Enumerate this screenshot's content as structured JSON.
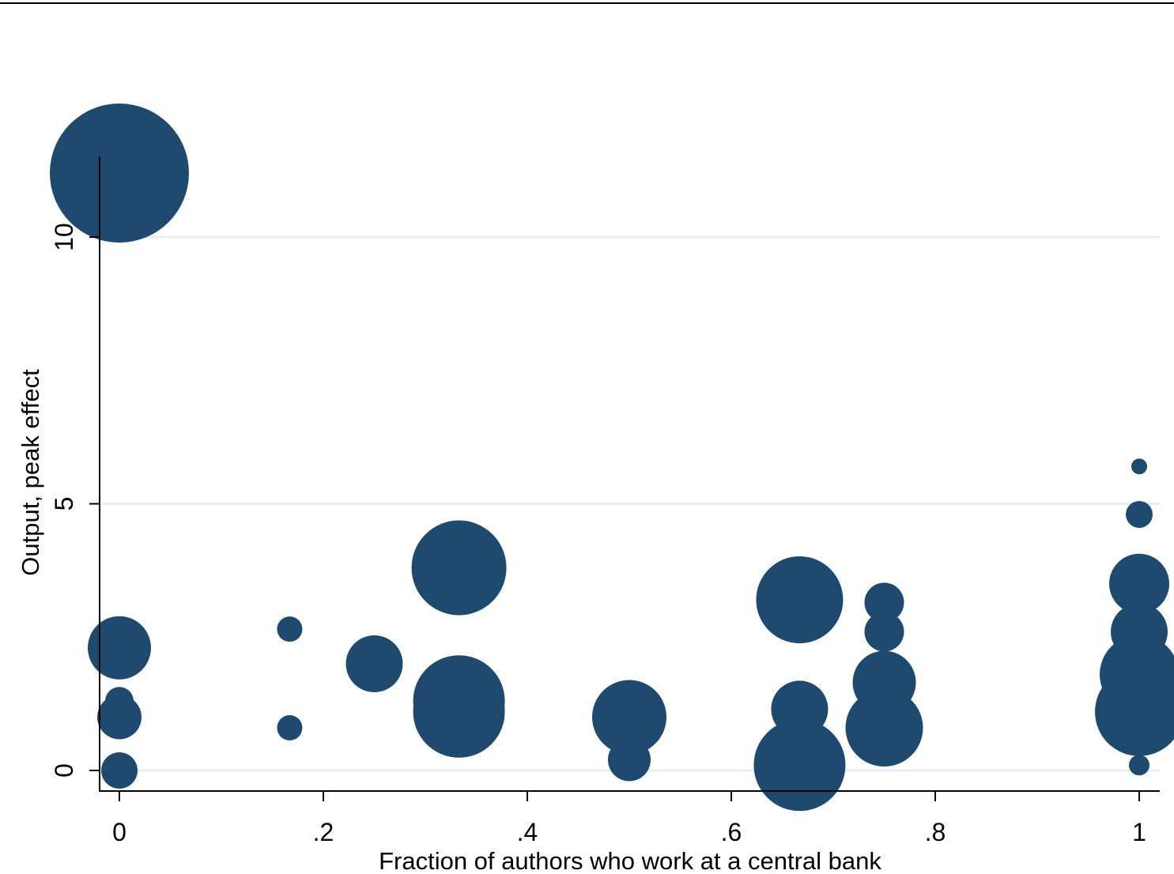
{
  "chart_data": {
    "type": "scatter",
    "title": "",
    "xlabel": "Fraction of authors who work at a central bank",
    "ylabel": "Output, peak effect",
    "xlim": [
      0,
      1
    ],
    "ylim": [
      0,
      10
    ],
    "x_ticks": [
      {
        "value": 0,
        "label": "0"
      },
      {
        "value": 0.2,
        "label": ".2"
      },
      {
        "value": 0.4,
        "label": ".4"
      },
      {
        "value": 0.6,
        "label": ".6"
      },
      {
        "value": 0.8,
        "label": ".8"
      },
      {
        "value": 1,
        "label": "1"
      }
    ],
    "y_ticks": [
      {
        "value": 0,
        "label": "0"
      },
      {
        "value": 5,
        "label": "5"
      },
      {
        "value": 10,
        "label": "10"
      }
    ],
    "grid": "horizontal",
    "marker": "weighted circles (size varies by observation weight)",
    "colors": {
      "marker": "#1f4a70",
      "grid": "#e7eef1",
      "axis": "#000000"
    },
    "points": [
      {
        "x": 0.0,
        "y": 11.2,
        "size": 88
      },
      {
        "x": 0.0,
        "y": 2.3,
        "size": 40
      },
      {
        "x": 0.0,
        "y": 1.3,
        "size": 18
      },
      {
        "x": 0.0,
        "y": 1.0,
        "size": 28
      },
      {
        "x": 0.0,
        "y": 0.0,
        "size": 23
      },
      {
        "x": 0.167,
        "y": 2.65,
        "size": 16
      },
      {
        "x": 0.167,
        "y": 0.8,
        "size": 16
      },
      {
        "x": 0.25,
        "y": 2.0,
        "size": 36
      },
      {
        "x": 0.333,
        "y": 3.8,
        "size": 60
      },
      {
        "x": 0.333,
        "y": 1.3,
        "size": 58
      },
      {
        "x": 0.333,
        "y": 1.1,
        "size": 58
      },
      {
        "x": 0.5,
        "y": 1.0,
        "size": 47
      },
      {
        "x": 0.5,
        "y": 0.2,
        "size": 27
      },
      {
        "x": 0.667,
        "y": 3.2,
        "size": 55
      },
      {
        "x": 0.667,
        "y": 1.15,
        "size": 36
      },
      {
        "x": 0.667,
        "y": 0.1,
        "size": 58
      },
      {
        "x": 0.75,
        "y": 3.15,
        "size": 25
      },
      {
        "x": 0.75,
        "y": 2.6,
        "size": 25
      },
      {
        "x": 0.75,
        "y": 1.65,
        "size": 40
      },
      {
        "x": 0.75,
        "y": 0.8,
        "size": 49
      },
      {
        "x": 1.0,
        "y": 5.7,
        "size": 10
      },
      {
        "x": 1.0,
        "y": 4.8,
        "size": 17
      },
      {
        "x": 1.0,
        "y": 3.5,
        "size": 38
      },
      {
        "x": 1.0,
        "y": 2.6,
        "size": 36
      },
      {
        "x": 1.0,
        "y": 1.8,
        "size": 50
      },
      {
        "x": 1.0,
        "y": 1.1,
        "size": 56
      },
      {
        "x": 1.0,
        "y": 0.1,
        "size": 13
      }
    ]
  }
}
